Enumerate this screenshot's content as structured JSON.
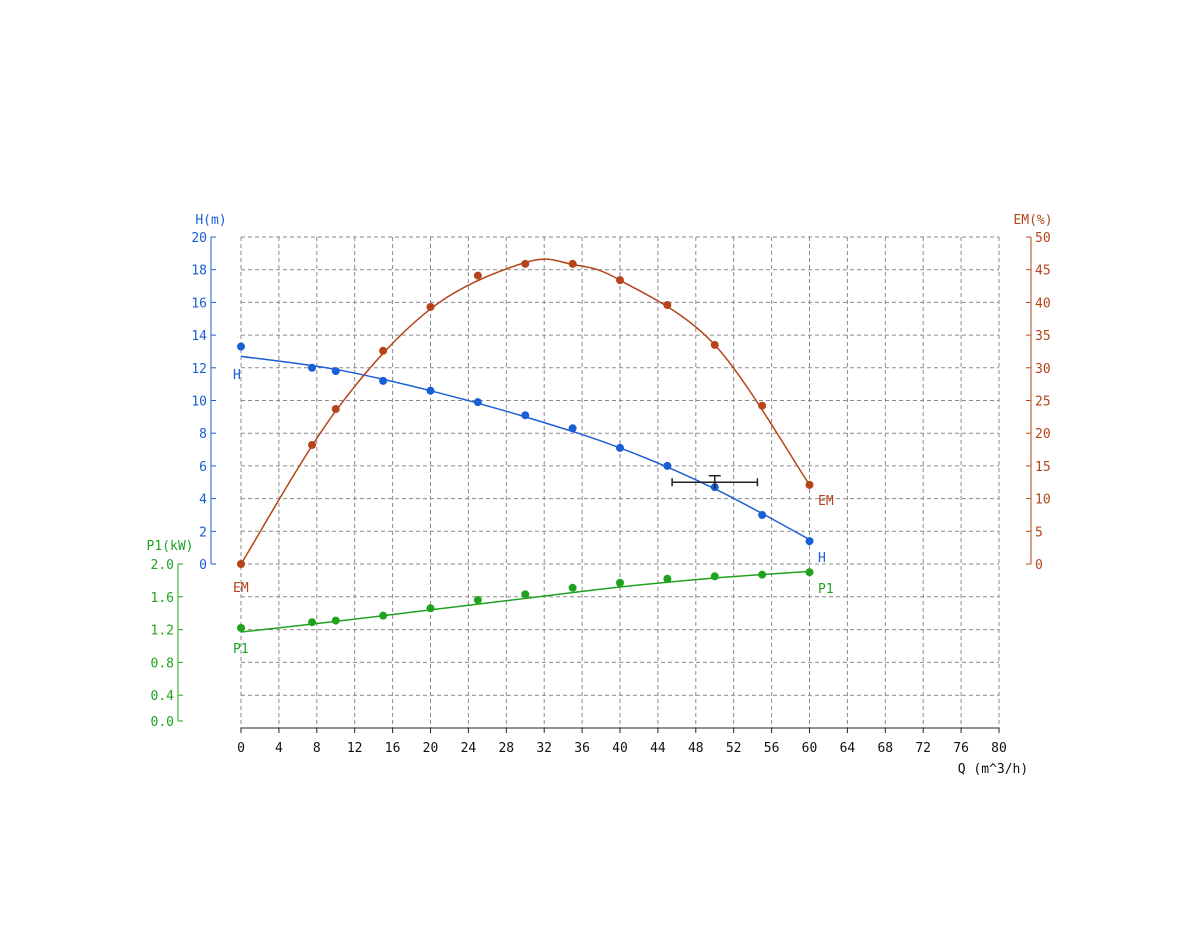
{
  "chart_data": {
    "type": "line",
    "colors": {
      "H": "#1a5fd6",
      "EM": "#b5441a",
      "P1": "#1fa31f",
      "grid": "#8a8a8a",
      "duty": "#222222"
    },
    "x_axis": {
      "label": "Q (m^3/h)",
      "range": [
        0,
        80
      ],
      "ticks": [
        "0",
        "4",
        "8",
        "12",
        "16",
        "20",
        "24",
        "28",
        "32",
        "36",
        "40",
        "44",
        "48",
        "52",
        "56",
        "60",
        "64",
        "68",
        "72",
        "76",
        "80"
      ]
    },
    "y_axes": {
      "H": {
        "label": "H(m)",
        "range": [
          0,
          20
        ],
        "ticks": [
          "0",
          "2",
          "4",
          "6",
          "8",
          "10",
          "12",
          "14",
          "16",
          "18",
          "20"
        ]
      },
      "EM": {
        "label": "EM(%)",
        "range": [
          0,
          50
        ],
        "ticks": [
          "0",
          "5",
          "10",
          "15",
          "20",
          "25",
          "30",
          "35",
          "40",
          "45",
          "50"
        ]
      },
      "P1": {
        "label": "P1(kW)",
        "range": [
          0,
          2.0
        ],
        "ticks": [
          "0.0",
          "0.4",
          "0.8",
          "1.2",
          "1.6",
          "2.0"
        ]
      }
    },
    "grid": true,
    "series": [
      {
        "name": "H",
        "axis": "H",
        "points": [
          [
            0,
            13.3
          ],
          [
            7.5,
            12.0
          ],
          [
            10,
            11.8
          ],
          [
            15,
            11.2
          ],
          [
            20,
            10.6
          ],
          [
            25,
            9.9
          ],
          [
            30,
            9.1
          ],
          [
            35,
            8.3
          ],
          [
            40,
            7.1
          ],
          [
            45,
            6.0
          ],
          [
            50,
            4.7
          ],
          [
            55,
            3.0
          ],
          [
            60,
            1.4
          ]
        ],
        "fit": [
          [
            0,
            12.7
          ],
          [
            10,
            11.9
          ],
          [
            20,
            10.6
          ],
          [
            30,
            9.0
          ],
          [
            40,
            7.1
          ],
          [
            50,
            4.6
          ],
          [
            60,
            1.5
          ]
        ]
      },
      {
        "name": "EM",
        "axis": "EM",
        "points": [
          [
            0,
            0
          ],
          [
            7.5,
            18.2
          ],
          [
            10,
            23.7
          ],
          [
            15,
            32.6
          ],
          [
            20,
            39.3
          ],
          [
            25,
            44.1
          ],
          [
            30,
            45.9
          ],
          [
            35,
            45.9
          ],
          [
            40,
            43.4
          ],
          [
            45,
            39.6
          ],
          [
            50,
            33.5
          ],
          [
            55,
            24.2
          ],
          [
            60,
            12.1
          ]
        ],
        "fit": [
          [
            0,
            0
          ],
          [
            10,
            23.4
          ],
          [
            20,
            39.0
          ],
          [
            30,
            46.1
          ],
          [
            35,
            45.8
          ],
          [
            40,
            43.4
          ],
          [
            50,
            33.5
          ],
          [
            60,
            12.1
          ]
        ]
      },
      {
        "name": "P1",
        "axis": "P1",
        "points": [
          [
            0,
            1.22
          ],
          [
            7.5,
            1.29
          ],
          [
            10,
            1.31
          ],
          [
            15,
            1.37
          ],
          [
            20,
            1.46
          ],
          [
            25,
            1.56
          ],
          [
            30,
            1.63
          ],
          [
            35,
            1.71
          ],
          [
            40,
            1.77
          ],
          [
            45,
            1.82
          ],
          [
            50,
            1.85
          ],
          [
            55,
            1.87
          ],
          [
            60,
            1.9
          ]
        ],
        "fit": [
          [
            0,
            1.17
          ],
          [
            10,
            1.3
          ],
          [
            20,
            1.44
          ],
          [
            30,
            1.58
          ],
          [
            40,
            1.72
          ],
          [
            50,
            1.83
          ],
          [
            60,
            1.91
          ]
        ]
      }
    ],
    "duty_point": {
      "x": 50,
      "y": 5.0,
      "x_error": [
        45.5,
        54.5
      ],
      "y_error": [
        4.6,
        5.4
      ]
    },
    "curve_labels": {
      "H_start": "H",
      "H_end": "H",
      "EM_start": "EM",
      "EM_end": "EM",
      "P1_start": "P1",
      "P1_end": "P1"
    }
  }
}
